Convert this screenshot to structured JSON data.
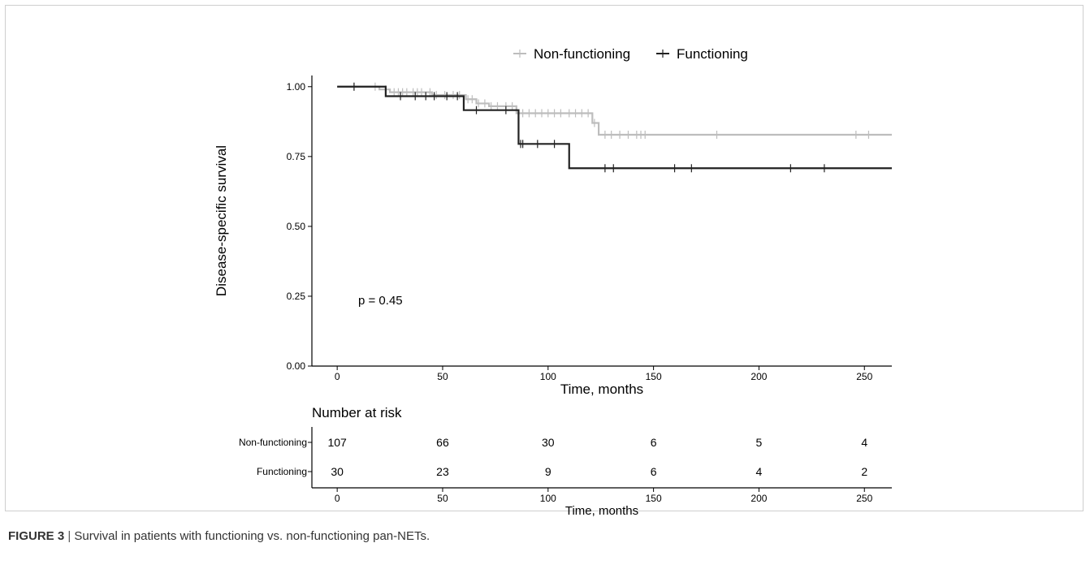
{
  "caption": {
    "label": "FIGURE 3",
    "separator": " | ",
    "text": "Survival in patients with functioning vs. non-functioning pan-NETs."
  },
  "colors": {
    "non_functioning": "#bdbdbd",
    "functioning": "#222222",
    "axis": "#000000",
    "text": "#000000"
  },
  "chart_data": {
    "type": "line",
    "subtype": "kaplan-meier",
    "ylabel": "Disease-specific survival",
    "xlabel": "Time, months",
    "xlim": [
      -12,
      263
    ],
    "ylim": [
      0,
      1.04
    ],
    "xticks": [
      0,
      50,
      100,
      150,
      200,
      250
    ],
    "xtick_labels": [
      "0",
      "50",
      "100",
      "150",
      "200",
      "250"
    ],
    "yticks": [
      0,
      0.25,
      0.5,
      0.75,
      1.0
    ],
    "ytick_labels": [
      "0.00",
      "0.25",
      "0.50",
      "0.75",
      "1.00"
    ],
    "grid": false,
    "legend_position": "top",
    "annotation": "p = 0.45",
    "series": [
      {
        "name": "Non-functioning",
        "color_key": "non_functioning",
        "steps": [
          [
            0,
            1.0
          ],
          [
            20,
            0.99
          ],
          [
            25,
            0.98
          ],
          [
            45,
            0.97
          ],
          [
            61,
            0.955
          ],
          [
            66,
            0.94
          ],
          [
            72,
            0.93
          ],
          [
            85,
            0.905
          ],
          [
            121,
            0.87
          ],
          [
            124,
            0.828
          ],
          [
            263,
            0.828
          ]
        ],
        "censor_times": [
          8,
          18,
          23,
          27,
          29,
          31,
          33,
          36,
          38,
          40,
          44,
          47,
          51,
          55,
          58,
          62,
          64,
          67,
          70,
          73,
          76,
          80,
          83,
          88,
          91,
          94,
          97,
          100,
          103,
          106,
          110,
          113,
          116,
          119,
          122,
          127,
          130,
          134,
          138,
          142,
          144,
          146,
          180,
          246,
          252
        ]
      },
      {
        "name": "Functioning",
        "color_key": "functioning",
        "steps": [
          [
            0,
            1.0
          ],
          [
            23,
            0.966
          ],
          [
            60,
            0.916
          ],
          [
            86,
            0.795
          ],
          [
            110,
            0.708
          ],
          [
            263,
            0.708
          ]
        ],
        "censor_times": [
          8,
          30,
          37,
          42,
          46,
          52,
          57,
          66,
          80,
          87,
          88,
          95,
          103,
          127,
          131,
          160,
          168,
          215,
          231
        ]
      }
    ],
    "risk_table": {
      "title": "Number at risk",
      "xlabel": "Time, months",
      "times": [
        0,
        50,
        100,
        150,
        200,
        250
      ],
      "time_labels": [
        "0",
        "50",
        "100",
        "150",
        "200",
        "250"
      ],
      "rows": [
        {
          "name": "Non-functioning",
          "values": [
            "107",
            "66",
            "30",
            "6",
            "5",
            "4"
          ]
        },
        {
          "name": "Functioning",
          "values": [
            "30",
            "23",
            "9",
            "6",
            "4",
            "2"
          ]
        }
      ]
    }
  }
}
